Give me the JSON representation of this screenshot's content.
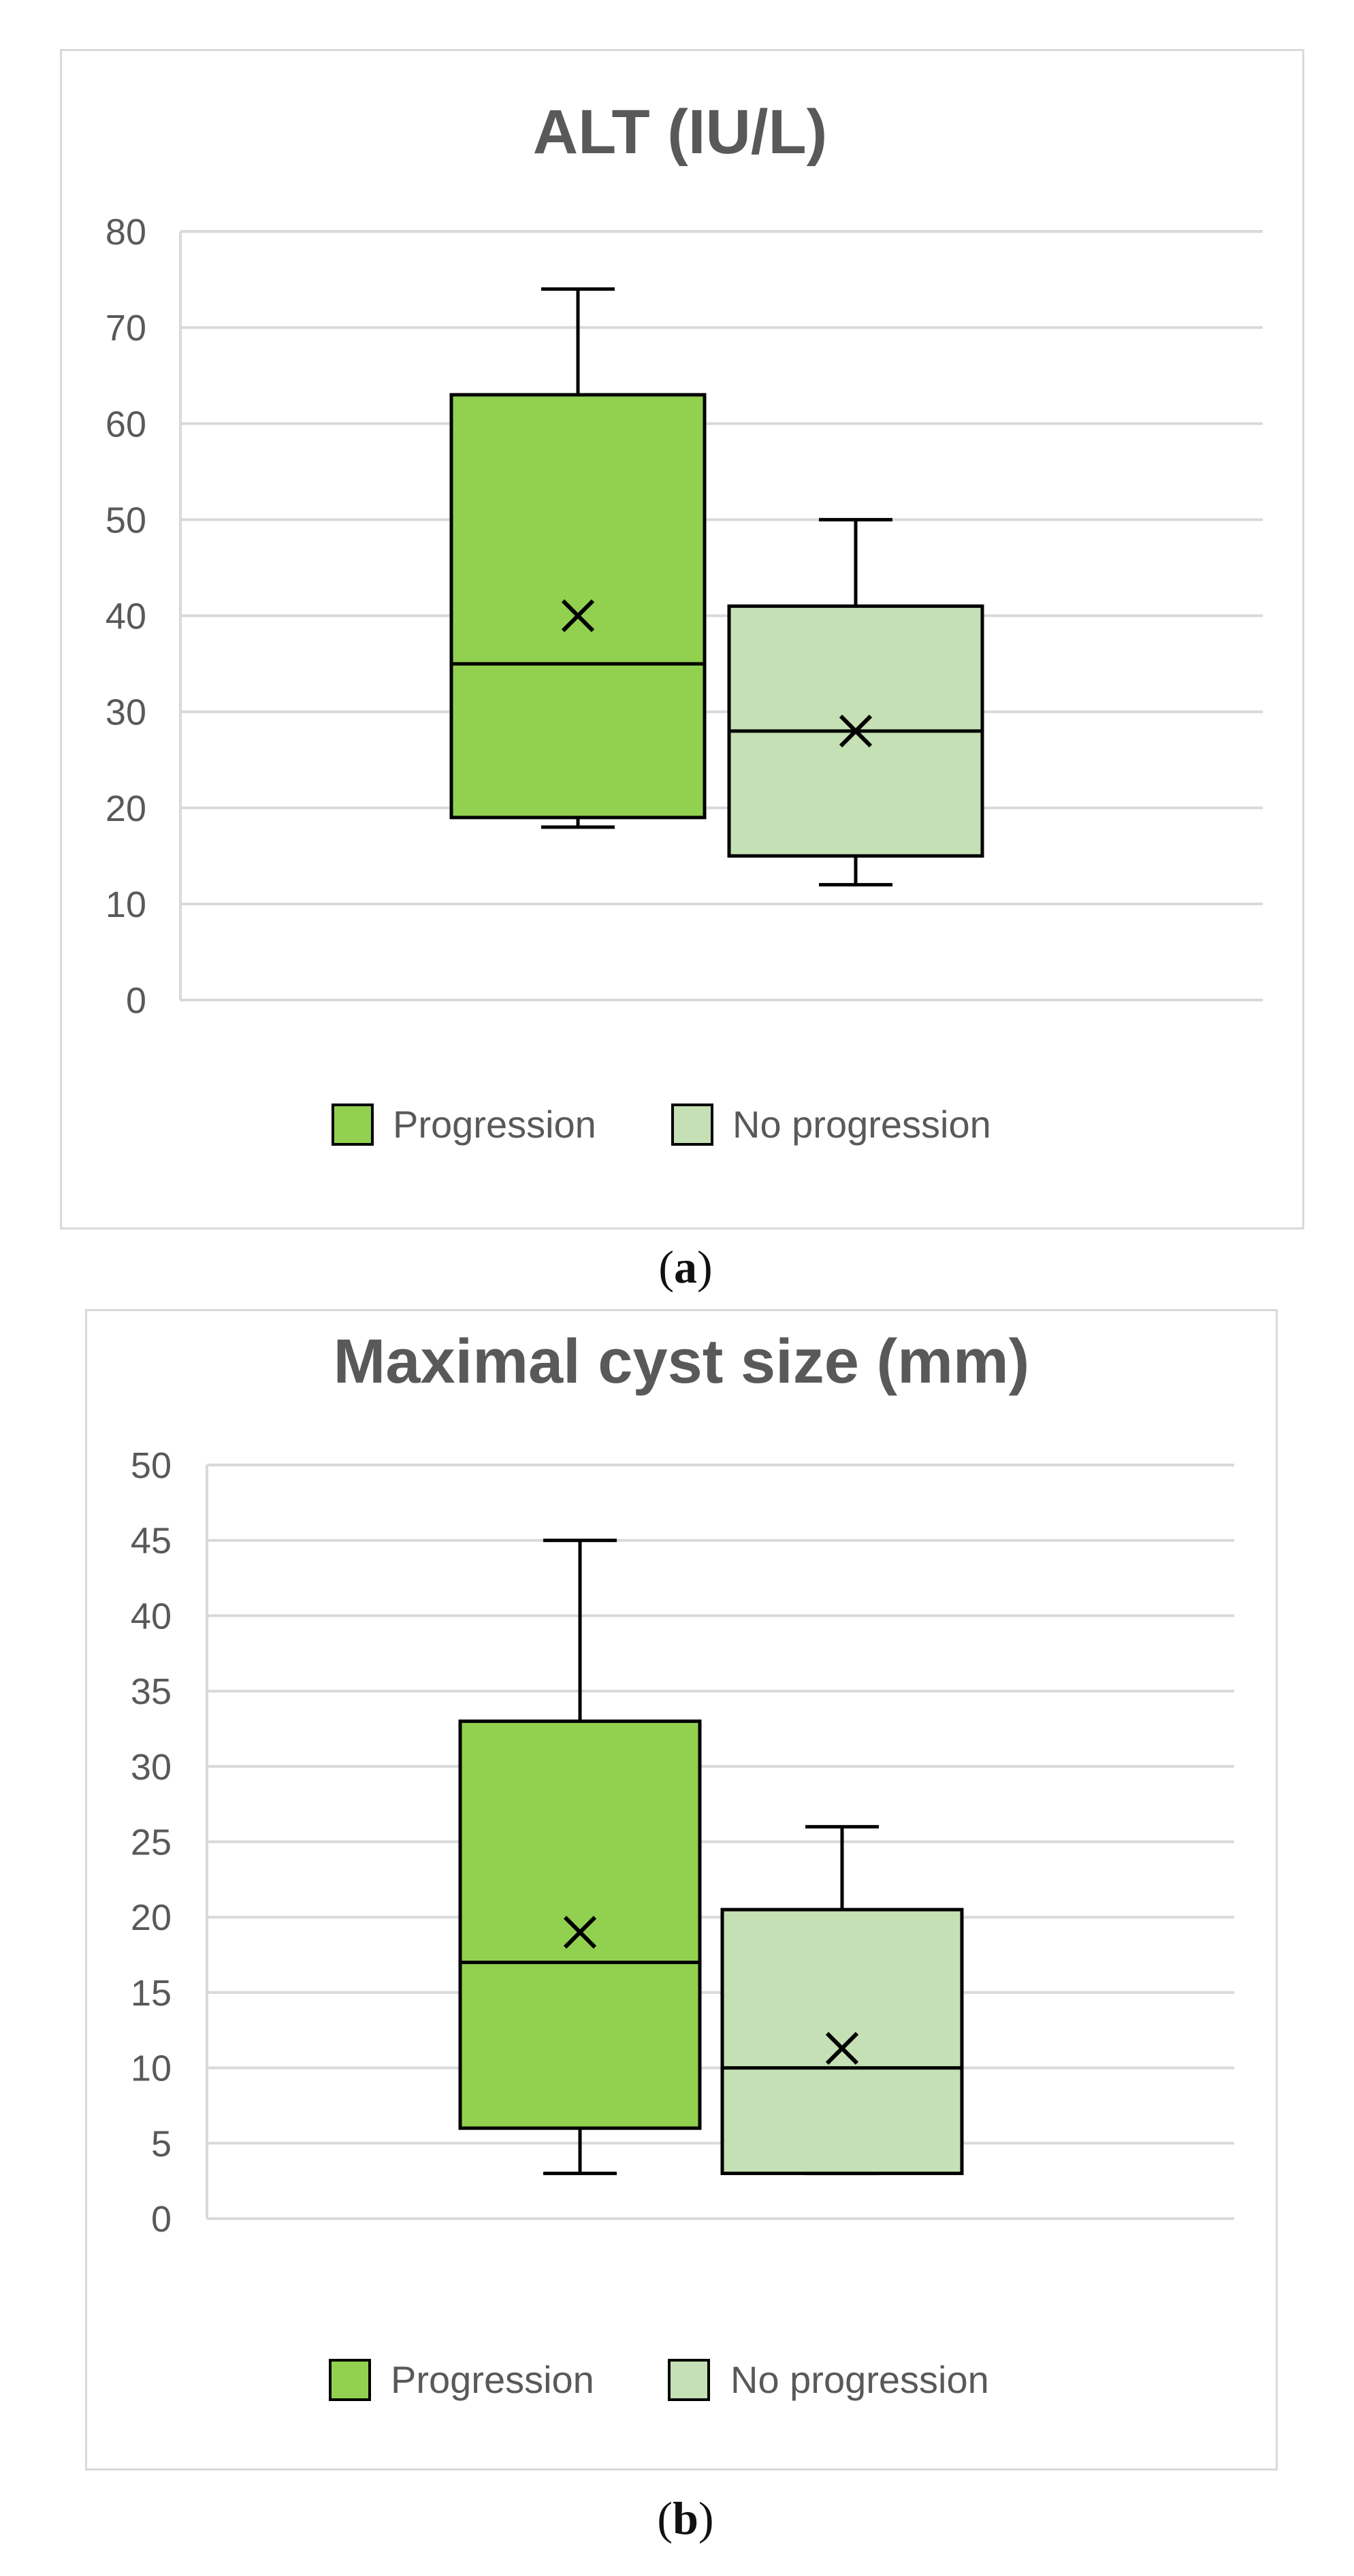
{
  "chart_data": [
    {
      "type": "box",
      "title": "ALT (IU/L)",
      "xlabel": "",
      "ylabel": "",
      "ylim": [
        0,
        80
      ],
      "ytick_step": 10,
      "yticks": [
        "0",
        "10",
        "20",
        "30",
        "40",
        "50",
        "60",
        "70",
        "80"
      ],
      "grid": true,
      "legend_position": "bottom",
      "legend": [
        "Progression",
        "No progression"
      ],
      "series": [
        {
          "name": "Progression",
          "color": "#92d050",
          "min": 18,
          "q1": 19,
          "median": 35,
          "q3": 63,
          "max": 74,
          "mean": 40
        },
        {
          "name": "No progression",
          "color": "#c5e0b4",
          "min": 12,
          "q1": 15,
          "median": 28,
          "q3": 41,
          "max": 50,
          "mean": 28
        }
      ],
      "caption_letter": "a",
      "caption_open": "(",
      "caption_close": ")"
    },
    {
      "type": "box",
      "title": "Maximal cyst size (mm)",
      "xlabel": "",
      "ylabel": "",
      "ylim": [
        0,
        50
      ],
      "ytick_step": 5,
      "yticks": [
        "0",
        "5",
        "10",
        "15",
        "20",
        "25",
        "30",
        "35",
        "40",
        "45",
        "50"
      ],
      "grid": true,
      "legend_position": "bottom",
      "legend": [
        "Progression",
        "No progression"
      ],
      "series": [
        {
          "name": "Progression",
          "color": "#92d050",
          "min": 3,
          "q1": 6,
          "median": 17,
          "q3": 33,
          "max": 45,
          "mean": 19
        },
        {
          "name": "No progression",
          "color": "#c5e0b4",
          "min": 3,
          "q1": 3,
          "median": 10,
          "q3": 20.5,
          "max": 26,
          "mean": 11.3
        }
      ],
      "caption_letter": "b",
      "caption_open": "(",
      "caption_close": ")"
    }
  ]
}
